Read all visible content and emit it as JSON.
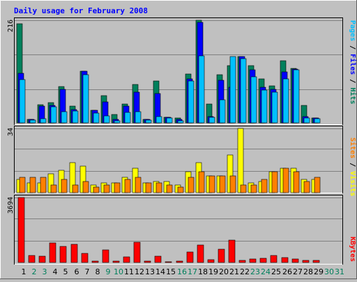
{
  "title": "Daily usage for February 2008",
  "colors": {
    "background": "#c0c0c0",
    "title": "#0000ff",
    "hits": "#00805c",
    "files": "#0000ff",
    "pages": "#00c0ff",
    "visits": "#ffff00",
    "sites": "#ff8000",
    "kbytes": "#ff0000",
    "weekend_day": "#00805c",
    "weekday_day": "#000000"
  },
  "panel_labels": {
    "top": [
      {
        "text": "Pages",
        "color": "#00c0ff"
      },
      {
        "text": " / ",
        "color": "#000000"
      },
      {
        "text": "Files",
        "color": "#0000ff"
      },
      {
        "text": " / ",
        "color": "#000000"
      },
      {
        "text": "Hits",
        "color": "#00805c"
      }
    ],
    "middle": [
      {
        "text": "Sites",
        "color": "#ff8000"
      },
      {
        "text": " / ",
        "color": "#000000"
      },
      {
        "text": "Visits",
        "color": "#ffff00"
      }
    ],
    "bottom": [
      {
        "text": "KBytes",
        "color": "#ff0000"
      }
    ]
  },
  "chart_data": [
    {
      "type": "bar",
      "panel": "hits_files_pages",
      "x": [
        "1",
        "2",
        "3",
        "4",
        "5",
        "6",
        "7",
        "8",
        "9",
        "10",
        "11",
        "12",
        "13",
        "14",
        "15",
        "16",
        "17",
        "18",
        "19",
        "20",
        "21",
        "22",
        "23",
        "24",
        "25",
        "26",
        "27",
        "28",
        "29",
        "30",
        "31"
      ],
      "weekend_days": [
        "2",
        "3",
        "9",
        "10",
        "16",
        "17",
        "23",
        "24",
        "30",
        "31"
      ],
      "ymax_label": "216",
      "ylim": [
        0,
        216
      ],
      "series": [
        {
          "name": "Hits",
          "values": [
            209,
            8,
            38,
            43,
            77,
            35,
            108,
            26,
            57,
            17,
            40,
            81,
            8,
            88,
            12,
            11,
            103,
            216,
            40,
            101,
            121,
            139,
            121,
            92,
            78,
            131,
            115,
            37,
            11,
            0,
            0
          ]
        },
        {
          "name": "Files",
          "values": [
            104,
            7,
            35,
            36,
            70,
            28,
            108,
            26,
            44,
            8,
            35,
            65,
            7,
            62,
            12,
            8,
            93,
            212,
            13,
            90,
            75,
            139,
            111,
            75,
            71,
            107,
            113,
            13,
            10,
            0,
            0
          ]
        },
        {
          "name": "Pages",
          "values": [
            91,
            6,
            9,
            34,
            23,
            25,
            101,
            21,
            14,
            5,
            22,
            23,
            6,
            13,
            11,
            5,
            88,
            141,
            12,
            49,
            139,
            135,
            97,
            69,
            64,
            92,
            111,
            11,
            9,
            0,
            0
          ]
        }
      ]
    },
    {
      "type": "bar",
      "panel": "visits_sites",
      "x": [
        "1",
        "2",
        "3",
        "4",
        "5",
        "6",
        "7",
        "8",
        "9",
        "10",
        "11",
        "12",
        "13",
        "14",
        "15",
        "16",
        "17",
        "18",
        "19",
        "20",
        "21",
        "22",
        "23",
        "24",
        "25",
        "26",
        "27",
        "28",
        "29",
        "30",
        "31"
      ],
      "ymax_label": "34",
      "ylim": [
        0,
        34
      ],
      "series": [
        {
          "name": "Visits",
          "values": [
            7,
            5,
            5,
            10,
            12,
            16,
            14,
            4,
            5,
            5,
            8,
            13,
            5,
            6,
            6,
            4,
            11,
            16,
            9,
            9,
            20,
            34,
            5,
            6,
            11,
            13,
            13,
            7,
            7,
            0,
            0
          ]
        },
        {
          "name": "Sites",
          "values": [
            8,
            8,
            8,
            4,
            7,
            4,
            6,
            3,
            4,
            5,
            7,
            8,
            5,
            5,
            4,
            3,
            8,
            11,
            9,
            9,
            9,
            4,
            4,
            7,
            11,
            13,
            11,
            6,
            8,
            0,
            0
          ]
        }
      ]
    },
    {
      "type": "bar",
      "panel": "kbytes",
      "x": [
        "1",
        "2",
        "3",
        "4",
        "5",
        "6",
        "7",
        "8",
        "9",
        "10",
        "11",
        "12",
        "13",
        "14",
        "15",
        "16",
        "17",
        "18",
        "19",
        "20",
        "21",
        "22",
        "23",
        "24",
        "25",
        "26",
        "27",
        "28",
        "29",
        "30",
        "31"
      ],
      "ymax_label": "3694",
      "ylim": [
        0,
        3694
      ],
      "series": [
        {
          "name": "KBytes",
          "values": [
            3694,
            395,
            342,
            1105,
            918,
            1052,
            500,
            93,
            703,
            93,
            316,
            1158,
            79,
            368,
            53,
            79,
            579,
            1000,
            158,
            763,
            1263,
            105,
            184,
            237,
            395,
            263,
            184,
            132,
            132,
            0,
            0
          ]
        }
      ]
    }
  ]
}
